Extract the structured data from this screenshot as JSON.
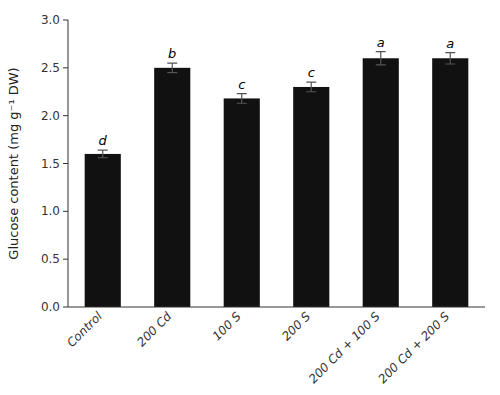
{
  "chart_data": {
    "type": "bar",
    "categories": [
      "Control",
      "200 Cd",
      "100 S",
      "200 S",
      "200 Cd + 100 S",
      "200 Cd + 200 S"
    ],
    "values": [
      1.6,
      2.5,
      2.18,
      2.3,
      2.6,
      2.6
    ],
    "errors": [
      0.04,
      0.05,
      0.05,
      0.05,
      0.07,
      0.06
    ],
    "annotations": [
      "d",
      "b",
      "c",
      "c",
      "a",
      "a"
    ],
    "color": "#111111",
    "ylabel": "Glucose content (mg g⁻¹ DW)",
    "ylim": [
      0.0,
      3.0
    ],
    "yticks": [
      {
        "value": 0.0,
        "label": "0.0"
      },
      0.5,
      {
        "value": 1.0,
        "label": "1.0"
      },
      1.5,
      {
        "value": 2.0,
        "label": "2.0"
      },
      2.5,
      {
        "value": 3.0,
        "label": "3.0"
      }
    ],
    "grid": false
  }
}
